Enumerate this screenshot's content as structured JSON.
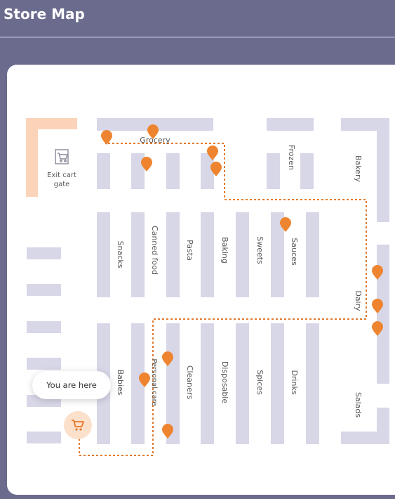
{
  "header": {
    "title": "Store Map"
  },
  "gate": {
    "label_line1": "Exit cart",
    "label_line2": "gate"
  },
  "you_are_here": "You are here",
  "aisles": {
    "grocery": "Grocery",
    "frozen": "Frozen",
    "bakery": "Bakery",
    "snacks": "Snacks",
    "canned_food": "Canned food",
    "pasta": "Pasta",
    "baking": "Baking",
    "sweets": "Sweets",
    "sauces": "Sauces",
    "dairy": "Dairy",
    "babies": "Babies",
    "personal_care": "Personal care",
    "cleaners": "Cleaners",
    "disposable": "Disposable",
    "spices": "Spices",
    "drinks": "Drinks",
    "salads": "Salads"
  },
  "colors": {
    "shelf": "#d7d7e8",
    "route": "#e07a2f",
    "pin": "#ef8430",
    "gate": "#fbd3b8"
  }
}
